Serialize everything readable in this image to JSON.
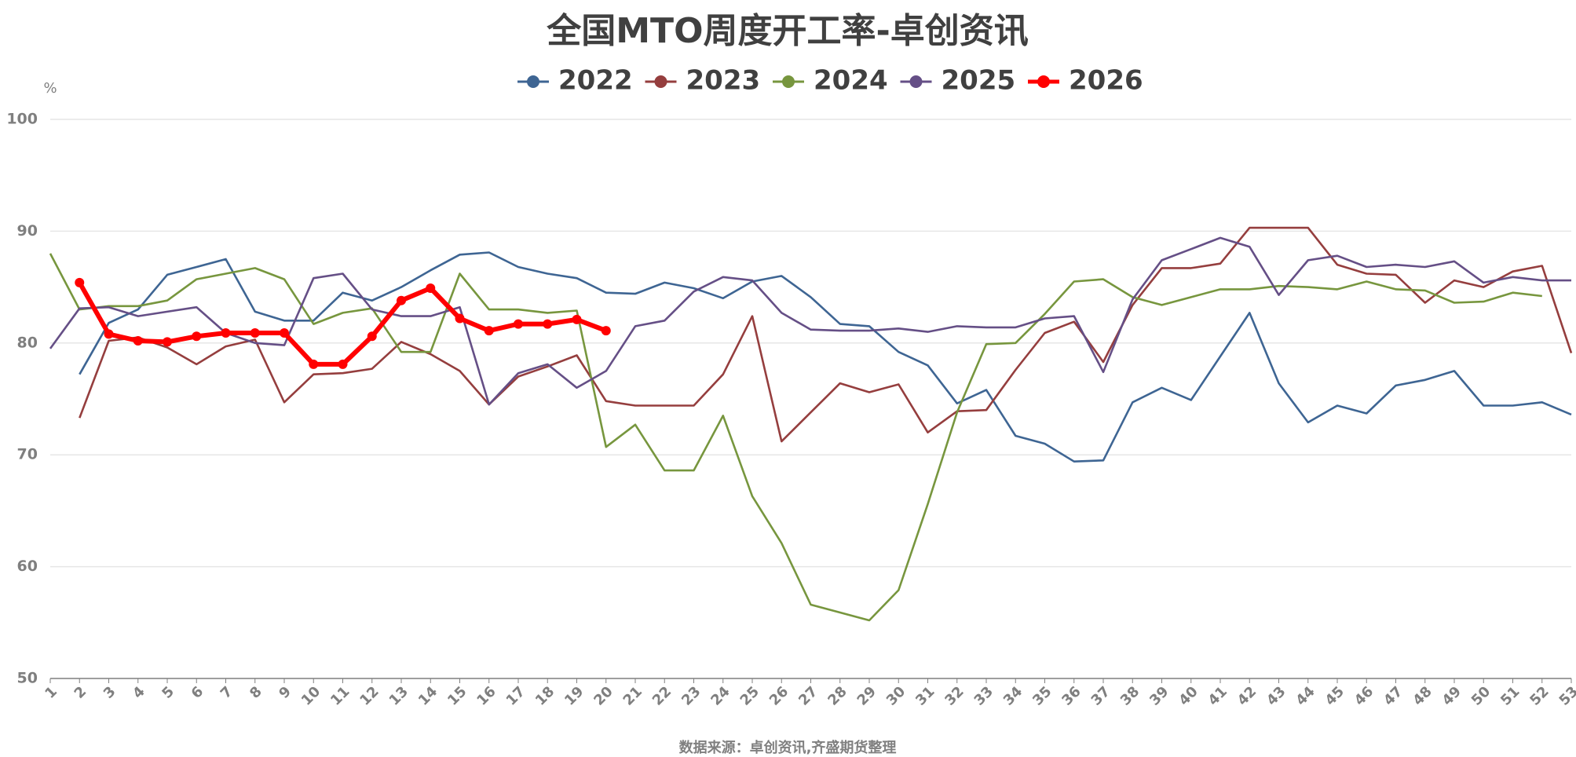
{
  "chart_data": {
    "type": "line",
    "title": "全国MTO周度开工率-卓创资讯",
    "y_label": "%",
    "source": "数据来源：卓创资讯,齐盛期货整理",
    "categories": [
      "1",
      "2",
      "3",
      "4",
      "5",
      "6",
      "7",
      "8",
      "9",
      "10",
      "11",
      "12",
      "13",
      "14",
      "15",
      "16",
      "17",
      "18",
      "19",
      "20",
      "21",
      "22",
      "23",
      "24",
      "25",
      "26",
      "27",
      "28",
      "29",
      "30",
      "31",
      "32",
      "33",
      "34",
      "35",
      "36",
      "37",
      "38",
      "39",
      "40",
      "41",
      "42",
      "43",
      "44",
      "45",
      "46",
      "47",
      "48",
      "49",
      "50",
      "51",
      "52",
      "53"
    ],
    "ylim": [
      50,
      100
    ],
    "yticks": [
      50,
      60,
      70,
      80,
      90,
      100
    ],
    "grid": true,
    "series": [
      {
        "name": "2022",
        "color": "#3e6593",
        "marker": false,
        "values": [
          null,
          77.2,
          81.8,
          83,
          86.1,
          86.8,
          87.5,
          82.8,
          82,
          82,
          84.5,
          83.8,
          85,
          86.5,
          87.9,
          88.1,
          86.8,
          86.2,
          85.8,
          84.5,
          84.4,
          85.4,
          84.9,
          84,
          85.5,
          86,
          84.1,
          81.7,
          81.5,
          79.2,
          78,
          74.6,
          75.8,
          71.7,
          71,
          69.4,
          69.5,
          74.7,
          76,
          74.9,
          78.8,
          82.7,
          76.4,
          72.9,
          74.4,
          73.7,
          76.2,
          76.7,
          77.5,
          74.4,
          74.4,
          74.7,
          73.6
        ]
      },
      {
        "name": "2023",
        "color": "#953e3e",
        "marker": false,
        "values": [
          null,
          73.3,
          80.2,
          80.5,
          79.6,
          78.1,
          79.7,
          80.3,
          74.7,
          77.2,
          77.3,
          77.7,
          80.1,
          79,
          77.5,
          74.5,
          77,
          77.9,
          78.9,
          74.8,
          74.4,
          74.4,
          74.4,
          77.2,
          82.4,
          71.2,
          73.8,
          76.4,
          75.6,
          76.3,
          72,
          73.9,
          74,
          77.6,
          80.9,
          81.9,
          78.3,
          83.4,
          86.7,
          86.7,
          87.1,
          90.3,
          90.3,
          90.3,
          87,
          86.2,
          86.1,
          83.6,
          85.6,
          85,
          86.4,
          86.9,
          79.1
        ]
      },
      {
        "name": "2024",
        "color": "#77963e",
        "marker": false,
        "values": [
          88,
          83,
          83.3,
          83.3,
          83.8,
          85.7,
          86.2,
          86.7,
          85.7,
          81.7,
          82.7,
          83.1,
          79.2,
          79.2,
          86.2,
          83,
          83,
          82.7,
          82.9,
          70.7,
          72.7,
          68.6,
          68.6,
          73.5,
          66.3,
          62.1,
          56.6,
          55.9,
          55.2,
          57.9,
          65.6,
          73.8,
          79.9,
          80,
          82.6,
          85.5,
          85.7,
          84.1,
          83.4,
          84.1,
          84.8,
          84.8,
          85.1,
          85,
          84.8,
          85.5,
          84.8,
          84.7,
          83.6,
          83.7,
          84.5,
          84.2,
          null
        ]
      },
      {
        "name": "2025",
        "color": "#654f86",
        "marker": false,
        "values": [
          79.5,
          83.1,
          83.2,
          82.4,
          82.8,
          83.2,
          80.9,
          80,
          79.8,
          85.8,
          86.2,
          83,
          82.4,
          82.4,
          83.2,
          74.5,
          77.3,
          78.1,
          76,
          77.5,
          81.5,
          82,
          84.6,
          85.9,
          85.6,
          82.7,
          81.2,
          81.1,
          81.1,
          81.3,
          81,
          81.5,
          81.4,
          81.4,
          82.2,
          82.4,
          77.4,
          83.9,
          87.4,
          88.4,
          89.4,
          88.6,
          84.3,
          87.4,
          87.8,
          86.8,
          87,
          86.8,
          87.3,
          85.4,
          85.9,
          85.6,
          85.6
        ]
      },
      {
        "name": "2026",
        "color": "#ff0000",
        "marker": true,
        "values": [
          null,
          85.4,
          80.8,
          80.2,
          80.1,
          80.6,
          80.9,
          80.9,
          80.9,
          78.1,
          78.1,
          80.6,
          83.8,
          84.9,
          82.2,
          81.1,
          81.7,
          81.7,
          82.1,
          81.1,
          null,
          null,
          null,
          null,
          null,
          null,
          null,
          null,
          null,
          null,
          null,
          null,
          null,
          null,
          null,
          null,
          null,
          null,
          null,
          null,
          null,
          null,
          null,
          null,
          null,
          null,
          null,
          null,
          null,
          null,
          null,
          null,
          null
        ]
      }
    ]
  }
}
